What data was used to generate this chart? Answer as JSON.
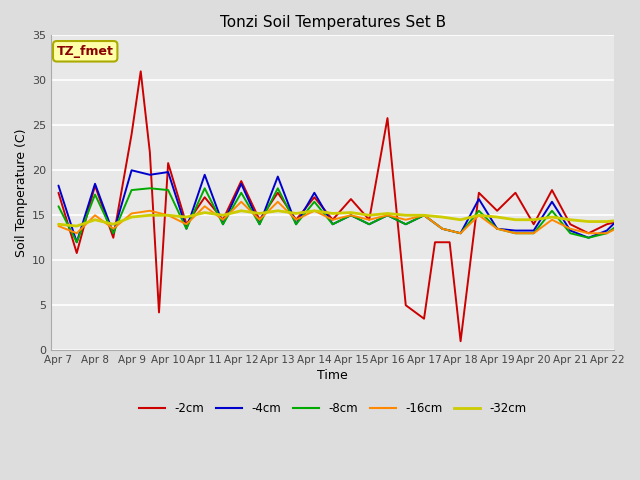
{
  "title": "Tonzi Soil Temperatures Set B",
  "xlabel": "Time",
  "ylabel": "Soil Temperature (C)",
  "annotation": "TZ_fmet",
  "ylim": [
    0,
    35
  ],
  "yticks": [
    0,
    5,
    10,
    15,
    20,
    25,
    30,
    35
  ],
  "series": {
    "-2cm": {
      "color": "#cc0000",
      "lw": 1.4,
      "x": [
        0,
        0.5,
        1.0,
        1.5,
        2.0,
        2.25,
        2.5,
        2.75,
        3.0,
        3.5,
        4.0,
        4.5,
        5.0,
        5.5,
        6.0,
        6.5,
        7.0,
        7.5,
        8.0,
        8.5,
        9.0,
        9.5,
        10.0,
        10.3,
        10.5,
        10.7,
        11.0,
        11.5,
        12.0,
        12.5,
        13.0,
        13.5,
        14.0,
        14.5,
        15.0,
        15.5,
        16.0,
        16.5,
        17.0,
        17.5,
        18.0,
        18.5,
        19.0,
        19.5,
        20.0,
        20.5,
        21.0,
        21.5
      ],
      "y": [
        17.5,
        10.8,
        18.3,
        12.5,
        24.0,
        31.0,
        22.0,
        4.2,
        20.8,
        14.0,
        17.0,
        14.5,
        18.8,
        14.5,
        17.5,
        14.5,
        17.0,
        14.5,
        16.8,
        14.5,
        25.8,
        5.0,
        3.5,
        12.0,
        12.0,
        12.0,
        1.0,
        17.5,
        15.5,
        17.5,
        14.0,
        17.8,
        14.0,
        13.0,
        14.0,
        14.5,
        14.5,
        12.0,
        15.5,
        14.5,
        17.5,
        14.5,
        14.5,
        15.0,
        16.5,
        14.5,
        14.5,
        14.5
      ]
    },
    "-4cm": {
      "color": "#0000cc",
      "lw": 1.4,
      "x": [
        0,
        0.5,
        1.0,
        1.5,
        2.0,
        2.5,
        3.0,
        3.5,
        4.0,
        4.5,
        5.0,
        5.5,
        6.0,
        6.5,
        7.0,
        7.5,
        8.0,
        8.5,
        9.0,
        9.5,
        10.0,
        10.5,
        11.0,
        11.5,
        12.0,
        12.5,
        13.0,
        13.5,
        14.0,
        14.5,
        15.0,
        15.5,
        16.0,
        16.5,
        17.0,
        17.5,
        18.0,
        18.5,
        19.0,
        19.5,
        20.0,
        20.5,
        21.0,
        21.5
      ],
      "y": [
        18.3,
        12.0,
        18.5,
        13.0,
        20.0,
        19.5,
        19.8,
        13.5,
        19.5,
        14.0,
        18.5,
        14.0,
        19.3,
        14.0,
        17.5,
        14.0,
        15.0,
        14.0,
        15.0,
        14.0,
        15.0,
        13.5,
        13.0,
        16.8,
        13.5,
        13.3,
        13.3,
        16.5,
        13.3,
        12.5,
        13.3,
        15.3,
        13.0,
        12.5,
        14.5,
        17.8,
        13.0,
        12.0,
        16.0,
        14.5,
        19.0,
        14.5,
        16.5,
        14.5
      ]
    },
    "-8cm": {
      "color": "#00aa00",
      "lw": 1.4,
      "x": [
        0,
        0.5,
        1.0,
        1.5,
        2.0,
        2.5,
        3.0,
        3.5,
        4.0,
        4.5,
        5.0,
        5.5,
        6.0,
        6.5,
        7.0,
        7.5,
        8.0,
        8.5,
        9.0,
        9.5,
        10.0,
        10.5,
        11.0,
        11.5,
        12.0,
        12.5,
        13.0,
        13.5,
        14.0,
        14.5,
        15.0,
        15.5,
        16.0,
        16.5,
        17.0,
        17.5,
        18.0,
        18.5,
        19.0,
        19.5,
        20.0,
        20.5,
        21.0,
        21.5
      ],
      "y": [
        16.0,
        12.0,
        17.3,
        13.0,
        17.8,
        18.0,
        17.8,
        13.5,
        18.0,
        14.0,
        17.5,
        14.0,
        18.0,
        14.0,
        16.5,
        14.0,
        15.0,
        14.0,
        15.0,
        14.0,
        15.0,
        13.5,
        13.0,
        15.5,
        13.5,
        13.0,
        13.0,
        15.5,
        13.0,
        12.5,
        13.0,
        14.5,
        13.0,
        12.5,
        14.0,
        17.0,
        13.0,
        12.5,
        15.5,
        14.0,
        16.5,
        14.5,
        15.8,
        14.5
      ]
    },
    "-16cm": {
      "color": "#ff8800",
      "lw": 1.4,
      "x": [
        0,
        0.5,
        1.0,
        1.5,
        2.0,
        2.5,
        3.0,
        3.5,
        4.0,
        4.5,
        5.0,
        5.5,
        6.0,
        6.5,
        7.0,
        7.5,
        8.0,
        8.5,
        9.0,
        9.5,
        10.0,
        10.5,
        11.0,
        11.5,
        12.0,
        12.5,
        13.0,
        13.5,
        14.0,
        14.5,
        15.0,
        15.5,
        16.0,
        16.5,
        17.0,
        17.5,
        18.0,
        18.5,
        19.0,
        19.5,
        20.0,
        20.5,
        21.0,
        21.5
      ],
      "y": [
        13.8,
        13.0,
        15.0,
        13.5,
        15.2,
        15.5,
        15.0,
        14.0,
        16.0,
        14.5,
        16.5,
        14.5,
        16.5,
        14.5,
        15.5,
        14.5,
        15.0,
        14.5,
        15.0,
        14.5,
        15.0,
        13.5,
        13.0,
        15.0,
        13.5,
        13.0,
        13.0,
        14.5,
        13.5,
        13.0,
        13.0,
        14.0,
        13.5,
        13.0,
        14.0,
        15.5,
        14.0,
        13.5,
        15.0,
        14.5,
        16.0,
        14.5,
        15.5,
        14.5
      ]
    },
    "-32cm": {
      "color": "#cccc00",
      "lw": 2.0,
      "x": [
        0,
        0.5,
        1.0,
        1.5,
        2.0,
        2.5,
        3.0,
        3.5,
        4.0,
        4.5,
        5.0,
        5.5,
        6.0,
        6.5,
        7.0,
        7.5,
        8.0,
        8.5,
        9.0,
        9.5,
        10.0,
        10.5,
        11.0,
        11.5,
        12.0,
        12.5,
        13.0,
        13.5,
        14.0,
        14.5,
        15.0,
        15.5,
        16.0,
        16.5,
        17.0,
        17.5,
        18.0,
        18.5,
        19.0,
        19.5,
        20.0,
        20.5,
        21.0,
        21.5
      ],
      "y": [
        14.0,
        13.8,
        14.5,
        14.0,
        14.8,
        15.0,
        15.0,
        14.8,
        15.3,
        15.0,
        15.5,
        15.2,
        15.5,
        15.2,
        15.5,
        15.2,
        15.3,
        15.0,
        15.2,
        15.0,
        15.0,
        14.8,
        14.5,
        15.0,
        14.8,
        14.5,
        14.5,
        14.8,
        14.5,
        14.3,
        14.3,
        14.5,
        14.3,
        14.2,
        14.5,
        14.8,
        14.5,
        14.3,
        14.8,
        14.5,
        15.0,
        14.8,
        15.0,
        14.8
      ]
    }
  },
  "xtick_labels": [
    "Apr 7",
    "Apr 8",
    "Apr 9",
    "Apr 10",
    "Apr 11",
    "Apr 12",
    "Apr 13",
    "Apr 14",
    "Apr 15",
    "Apr 16",
    "Apr 17",
    "Apr 18",
    "Apr 19",
    "Apr 20",
    "Apr 21",
    "Apr 22"
  ],
  "legend_labels": [
    "-2cm",
    "-4cm",
    "-8cm",
    "-16cm",
    "-32cm"
  ],
  "legend_colors": [
    "#cc0000",
    "#0000cc",
    "#00aa00",
    "#ff8800",
    "#cccc00"
  ]
}
